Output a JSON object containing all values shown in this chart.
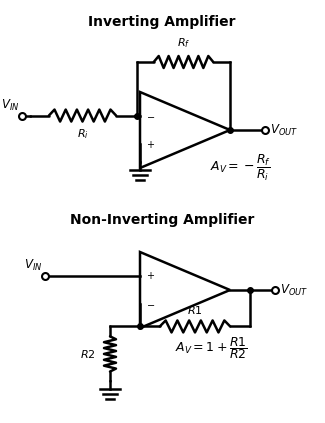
{
  "title1": "Inverting Amplifier",
  "title2": "Non-Inverting Amplifier",
  "bg_color": "#ffffff",
  "line_color": "#000000",
  "line_width": 1.8,
  "fig_width": 3.25,
  "fig_height": 4.23,
  "dpi": 100
}
